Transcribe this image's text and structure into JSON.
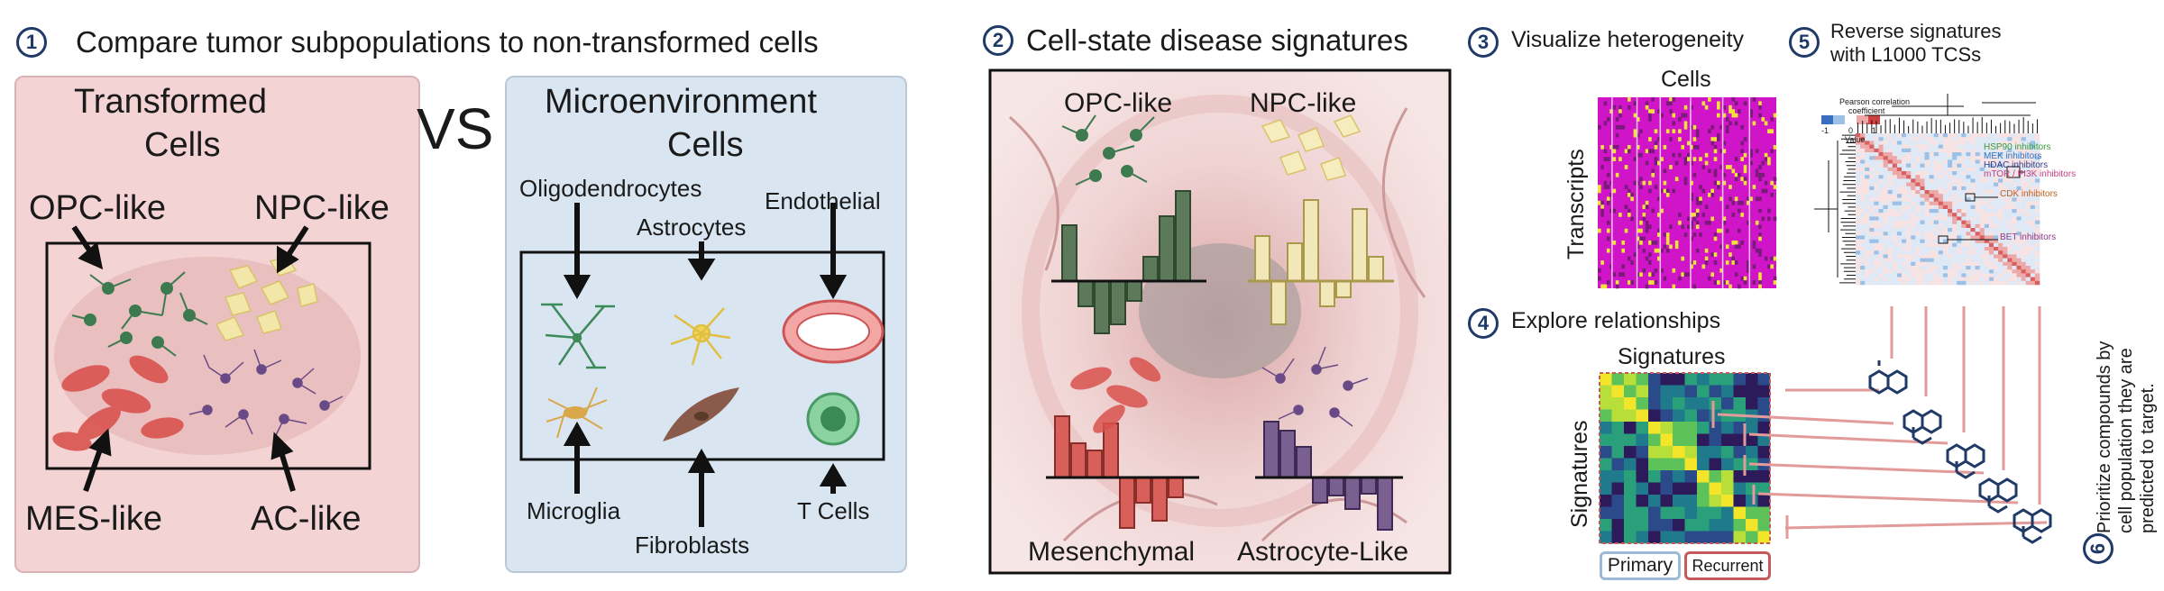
{
  "section1": {
    "num": "1",
    "title": "Compare tumor subpopulations to non-transformed cells"
  },
  "transformed": {
    "title1": "Transformed",
    "title2": "Cells",
    "opc": "OPC-like",
    "npc": "NPC-like",
    "mes": "MES-like",
    "ac": "AC-like"
  },
  "vs": "VS",
  "micro": {
    "title1": "Microenvironment",
    "title2": "Cells",
    "oligo": "Oligodendrocytes",
    "astro": "Astrocytes",
    "endo": "Endothelial",
    "microglia": "Microglia",
    "fibro": "Fibroblasts",
    "tcells": "T Cells"
  },
  "section2": {
    "num": "2",
    "title": "Cell-state disease signatures",
    "opc": "OPC-like",
    "npc": "NPC-like",
    "mes": "Mesenchymal",
    "astro": "Astrocyte-Like"
  },
  "section3": {
    "num": "3",
    "title": "Visualize heterogeneity",
    "cells": "Cells",
    "transcripts": "Transcripts"
  },
  "section4": {
    "num": "4",
    "title": "Explore relationships",
    "sig_top": "Signatures",
    "sig_left": "Signatures",
    "primary": "Primary",
    "recurrent": "Recurrent"
  },
  "section5": {
    "num": "5",
    "title1": "Reverse signatures",
    "title2": "with L1000 TCSs",
    "legend_title1": "Pearson correlation",
    "legend_title2": "coefficient",
    "legend_min": "-1",
    "legend_zero": "0",
    "legend_max": "1",
    "legend_value": "Value",
    "hsp90": "HSP90 inhibitors",
    "mek": "MEK inhibitors",
    "hdac": "HDAC inhibitors",
    "mtor": "mTOR / PI3K inhibitors",
    "cdk": "CDK inhibitors",
    "bet": "BET inhibitors"
  },
  "section6": {
    "num": "6",
    "line1": "Prioritize compounds by",
    "line2": "cell population they are",
    "line3": "predicted to target."
  },
  "colors": {
    "opc": "#3d7a4f",
    "npc": "#e8dd9a",
    "mes": "#d9534f",
    "astro": "#6a4a86",
    "accent": "#1f3a66",
    "primary_box": "#9db8d8",
    "recurrent_box": "#c45a5a"
  }
}
